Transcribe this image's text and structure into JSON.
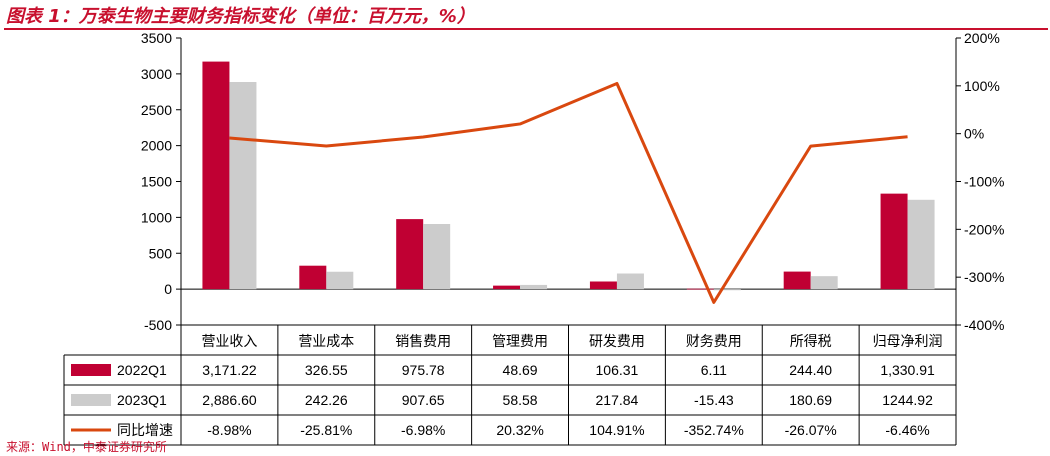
{
  "title": "图表 1：万泰生物主要财务指标变化（单位：百万元，%）",
  "source": "来源：Wind，中泰证券研究所",
  "chart_data": {
    "type": "bar",
    "categories": [
      "营业收入",
      "营业成本",
      "销售费用",
      "管理费用",
      "研发费用",
      "财务费用",
      "所得税",
      "归母净利润"
    ],
    "series": [
      {
        "name": "2022Q1",
        "type": "bar",
        "axis": "left",
        "color": "#c00033",
        "values": [
          3171.22,
          326.55,
          975.78,
          48.69,
          106.31,
          6.11,
          244.4,
          1330.91
        ],
        "labels": [
          "3,171.22",
          "326.55",
          "975.78",
          "48.69",
          "106.31",
          "6.11",
          "244.40",
          "1,330.91"
        ]
      },
      {
        "name": "2023Q1",
        "type": "bar",
        "axis": "left",
        "color": "#cccccc",
        "values": [
          2886.6,
          242.26,
          907.65,
          58.58,
          217.84,
          -15.43,
          180.69,
          1244.92
        ],
        "labels": [
          "2,886.60",
          "242.26",
          "907.65",
          "58.58",
          "217.84",
          "-15.43",
          "180.69",
          "1244.92"
        ]
      },
      {
        "name": "同比增速",
        "type": "line",
        "axis": "right",
        "color": "#d9480f",
        "values": [
          -8.98,
          -25.81,
          -6.98,
          20.32,
          104.91,
          -352.74,
          -26.07,
          -6.46
        ],
        "labels": [
          "-8.98%",
          "-25.81%",
          "-6.98%",
          "20.32%",
          "104.91%",
          "-352.74%",
          "-26.07%",
          "-6.46%"
        ]
      }
    ],
    "y_left": {
      "min": -500,
      "max": 3500,
      "step": 500,
      "ticks": [
        "-500",
        "0",
        "500",
        "1000",
        "1500",
        "2000",
        "2500",
        "3000",
        "3500"
      ]
    },
    "y_right": {
      "min": -400,
      "max": 200,
      "step": 100,
      "ticks": [
        "-400%",
        "-300%",
        "-200%",
        "-100%",
        "0%",
        "100%",
        "200%"
      ]
    },
    "grid": false,
    "legend": "data-table-left"
  }
}
